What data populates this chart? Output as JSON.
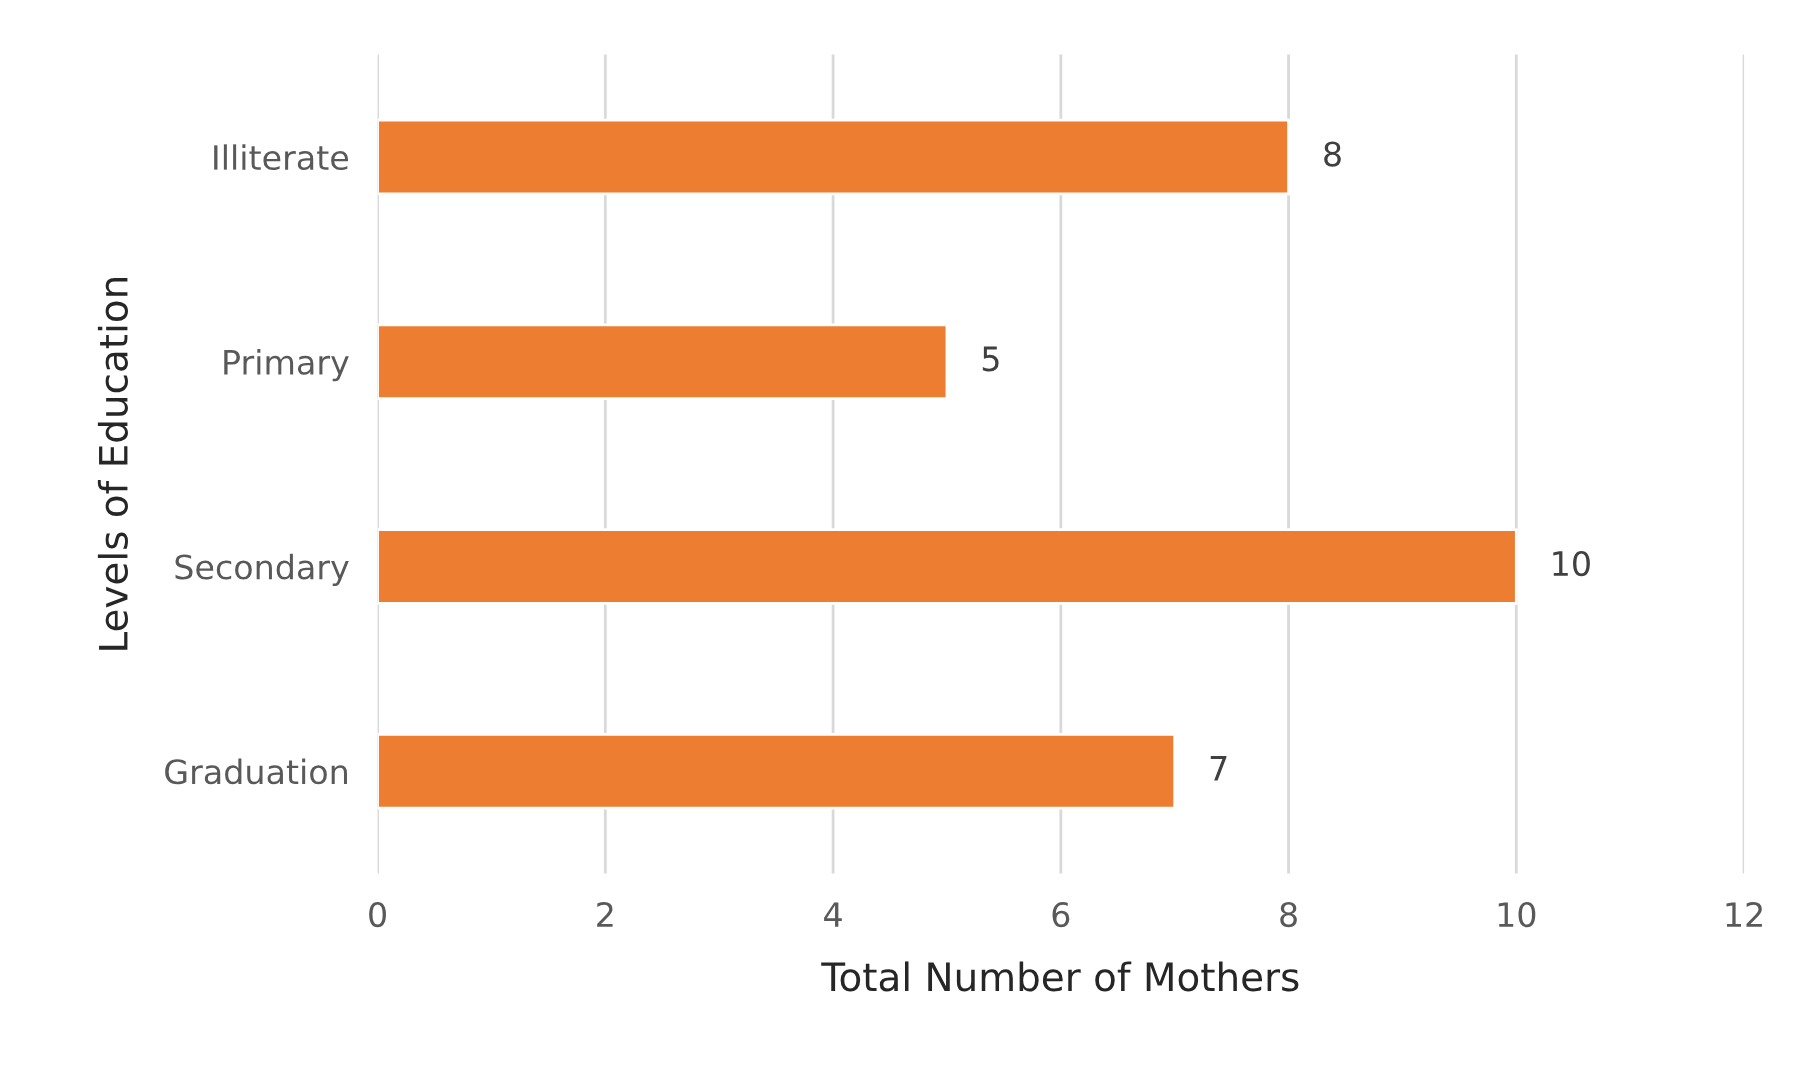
{
  "chart_data": {
    "type": "bar",
    "orientation": "horizontal",
    "xlabel": "Total Number of Mothers",
    "ylabel": "Levels of Education",
    "categories": [
      "Illiterate",
      "Primary",
      "Secondary",
      "Graduation"
    ],
    "values": [
      8,
      5,
      10,
      7
    ],
    "color": "#ed7d31",
    "xlim": [
      0,
      12
    ],
    "xticks": [
      0,
      2,
      4,
      6,
      8,
      10,
      12
    ],
    "grid": "x",
    "data_labels": true
  }
}
